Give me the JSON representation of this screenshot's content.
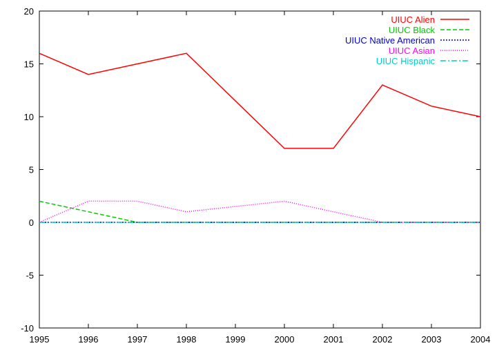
{
  "chart_data": {
    "type": "line",
    "title": "",
    "xlabel": "",
    "ylabel": "",
    "x": [
      1995,
      1996,
      1997,
      1998,
      1999,
      2000,
      2001,
      2002,
      2003,
      2004
    ],
    "xlim": [
      1995,
      2004
    ],
    "ylim": [
      -10,
      20
    ],
    "x_ticks": [
      "1995",
      "1996",
      "1997",
      "1998",
      "1999",
      "2000",
      "2001",
      "2002",
      "2003",
      "2004"
    ],
    "y_ticks": [
      "-10",
      "-5",
      "0",
      "5",
      "10",
      "15",
      "20"
    ],
    "grid": false,
    "legend_position": "top-right",
    "series": [
      {
        "name": "UIUC Alien",
        "color": "#ff0000",
        "dash": "solid",
        "values": [
          16,
          14,
          15,
          16,
          11.5,
          7,
          7,
          13,
          11,
          10
        ]
      },
      {
        "name": "UIUC Black",
        "color": "#00cc00",
        "dash": "dashed",
        "values": [
          2,
          1,
          0,
          0,
          0,
          0,
          0,
          0,
          0,
          0
        ]
      },
      {
        "name": "UIUC Native American",
        "color": "#0000cc",
        "dash": "dotted",
        "values": [
          0,
          0,
          0,
          0,
          0,
          0,
          0,
          0,
          0,
          0
        ]
      },
      {
        "name": "UIUC Asian",
        "color": "#ff00ff",
        "dash": "fine-dotted",
        "values": [
          0,
          2,
          2,
          1,
          1.5,
          2,
          1,
          0,
          0,
          0
        ]
      },
      {
        "name": "UIUC Hispanic",
        "color": "#00cccc",
        "dash": "dash-dot",
        "values": [
          0,
          0,
          0,
          0,
          0,
          0,
          0,
          0,
          0,
          0
        ]
      }
    ]
  }
}
